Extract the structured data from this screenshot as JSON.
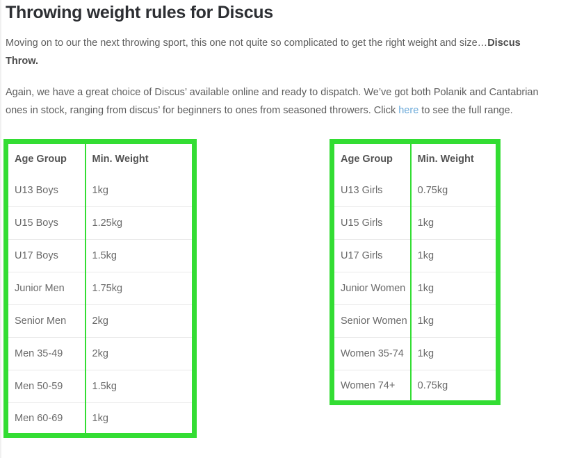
{
  "page": {
    "title": "Throwing weight rules for Discus"
  },
  "intro": {
    "p1_text": "Moving on to our the next throwing sport, this one not quite so complicated to get the right weight and size…",
    "p1_bold": "Discus Throw.",
    "p2_before": "Again, we have a great choice of Discus’ available online and ready to dispatch. We’ve got both Polanik and Cantabrian ones in stock, ranging from discus’ for beginners to ones from seasoned throwers. Click ",
    "p2_link": "here",
    "p2_after": " to see the full range."
  },
  "boys_table": {
    "headers": [
      "Age Group",
      "Min. Weight"
    ],
    "rows": [
      [
        "U13 Boys",
        "1kg"
      ],
      [
        "U15 Boys",
        "1.25kg"
      ],
      [
        "U17 Boys",
        "1.5kg"
      ],
      [
        "Junior Men",
        "1.75kg"
      ],
      [
        "Senior Men",
        "2kg"
      ],
      [
        "Men 35-49",
        "2kg"
      ],
      [
        "Men 50-59",
        "1.5kg"
      ],
      [
        "Men 60-69",
        "1kg"
      ]
    ]
  },
  "girls_table": {
    "headers": [
      "Age Group",
      "Min. Weight"
    ],
    "rows": [
      [
        "U13 Girls",
        "0.75kg"
      ],
      [
        "U15 Girls",
        "1kg"
      ],
      [
        "U17 Girls",
        "1kg"
      ],
      [
        "Junior Women",
        "1kg"
      ],
      [
        "Senior Women",
        "1kg"
      ],
      [
        "Women 35-74",
        "1kg"
      ],
      [
        "Women 74+",
        "0.75kg"
      ]
    ]
  },
  "colors": {
    "table_border_green": "#33dd33",
    "link_blue": "#69a8d8"
  }
}
